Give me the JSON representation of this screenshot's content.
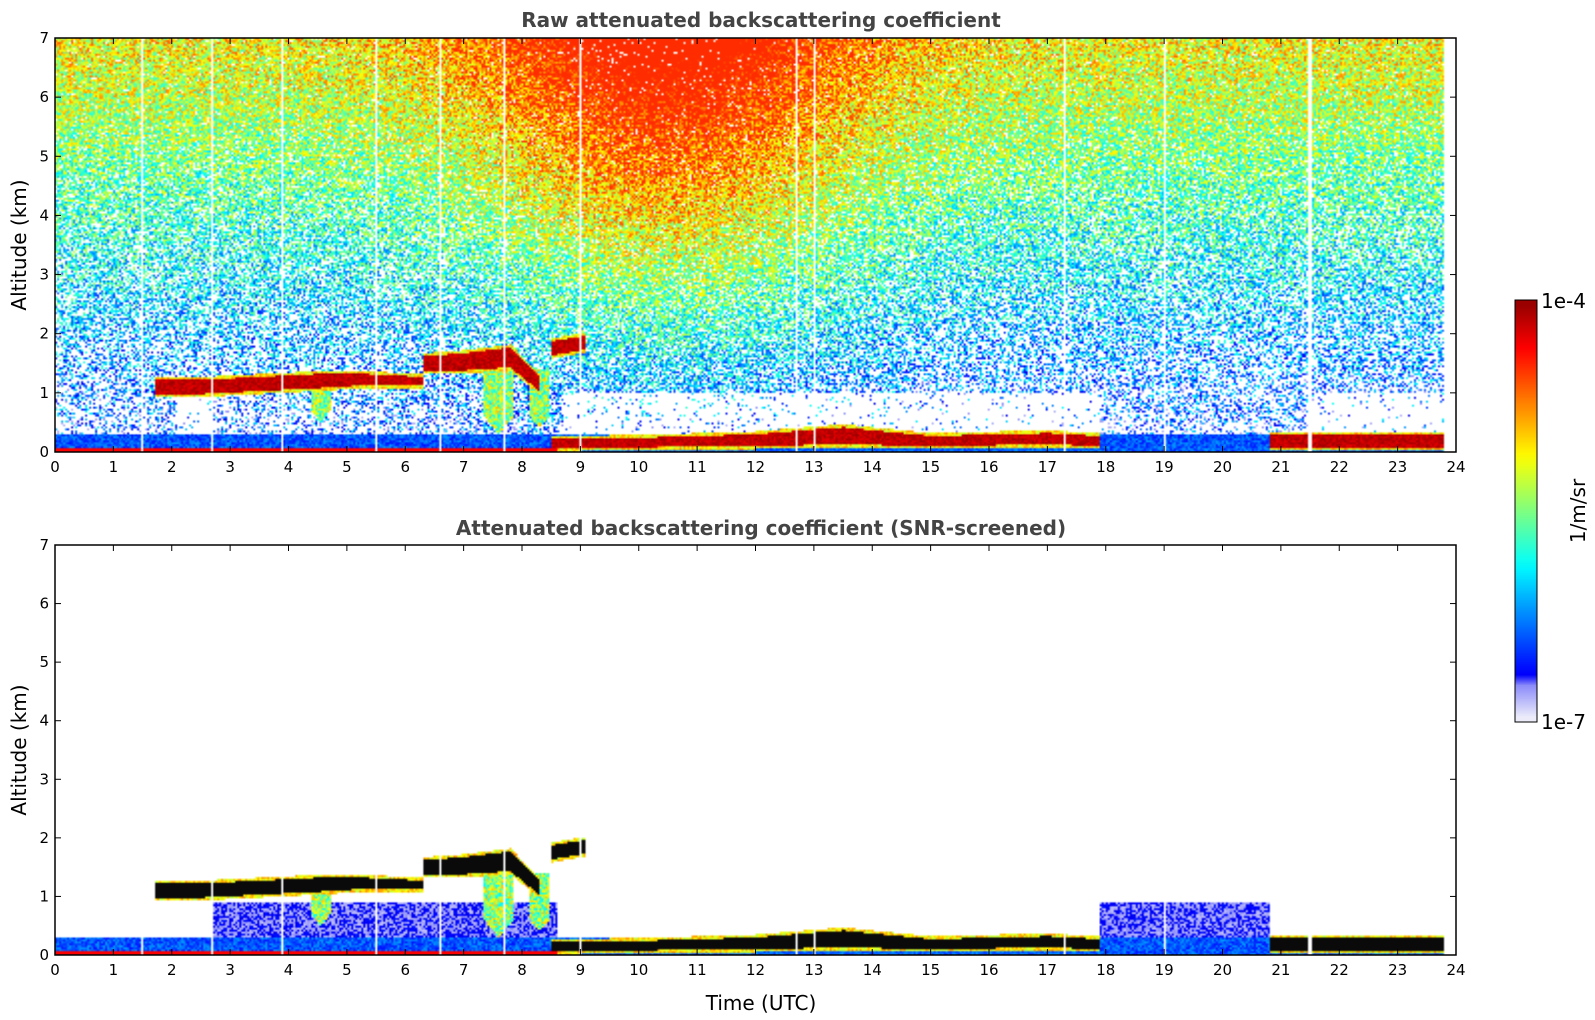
{
  "chart_data": {
    "type": "heatmap",
    "colormap": "jet",
    "colorbar": {
      "min_label": "1e-7",
      "max_label": "1e-4",
      "min_value": 1e-07,
      "max_value": 0.0001,
      "scale": "log",
      "unit_label": "1/m/sr"
    },
    "x_label": "Time (UTC)",
    "x_range": [
      0,
      24
    ],
    "x_ticks": [
      "0",
      "1",
      "2",
      "3",
      "4",
      "5",
      "6",
      "7",
      "8",
      "9",
      "10",
      "11",
      "12",
      "13",
      "14",
      "15",
      "16",
      "17",
      "18",
      "19",
      "20",
      "21",
      "22",
      "23",
      "24"
    ],
    "y_range": [
      0,
      7
    ],
    "y_ticks": [
      "0",
      "1",
      "2",
      "3",
      "4",
      "5",
      "6",
      "7"
    ],
    "data_end_hour": 23.8,
    "panels": [
      {
        "title": "Raw attenuated backscattering coefficient",
        "ylabel": "Altitude (km)",
        "screened": false
      },
      {
        "title": "Attenuated backscattering coefficient (SNR-screened)",
        "ylabel": "Altitude (km)",
        "screened": true
      }
    ],
    "cloud_layers": [
      {
        "name": "low-cloud-1",
        "t": [
          1.7,
          2.5,
          3.5,
          4.5,
          5.3,
          6.3
        ],
        "base_km": [
          1.0,
          1.0,
          1.05,
          1.1,
          1.15,
          1.15
        ],
        "top_km": [
          1.2,
          1.2,
          1.25,
          1.3,
          1.3,
          1.25
        ]
      },
      {
        "name": "low-cloud-2",
        "t": [
          6.3,
          7.0,
          7.8,
          8.3
        ],
        "base_km": [
          1.4,
          1.4,
          1.45,
          1.05
        ],
        "top_km": [
          1.6,
          1.65,
          1.75,
          1.25
        ]
      },
      {
        "name": "low-cloud-3",
        "t": [
          8.5,
          9.1
        ],
        "base_km": [
          1.65,
          1.75
        ],
        "top_km": [
          1.85,
          1.95
        ]
      },
      {
        "name": "boundary-layer-top",
        "t": [
          8.5,
          10,
          12,
          13.5,
          15,
          17,
          17.9
        ],
        "base_km": [
          0.08,
          0.1,
          0.12,
          0.15,
          0.12,
          0.15,
          0.12
        ],
        "top_km": [
          0.2,
          0.22,
          0.28,
          0.4,
          0.25,
          0.3,
          0.25
        ]
      },
      {
        "name": "boundary-layer-late",
        "t": [
          20.8,
          23.8
        ],
        "base_km": [
          0.1,
          0.1
        ],
        "top_km": [
          0.28,
          0.28
        ]
      }
    ],
    "virga": [
      {
        "t_center": 4.55,
        "width_h": 0.35,
        "top_km": 1.1,
        "bottom_km": 0.5
      },
      {
        "t_center": 7.6,
        "width_h": 0.5,
        "top_km": 1.4,
        "bottom_km": 0.3
      },
      {
        "t_center": 8.3,
        "width_h": 0.35,
        "top_km": 1.4,
        "bottom_km": 0.4
      }
    ]
  }
}
